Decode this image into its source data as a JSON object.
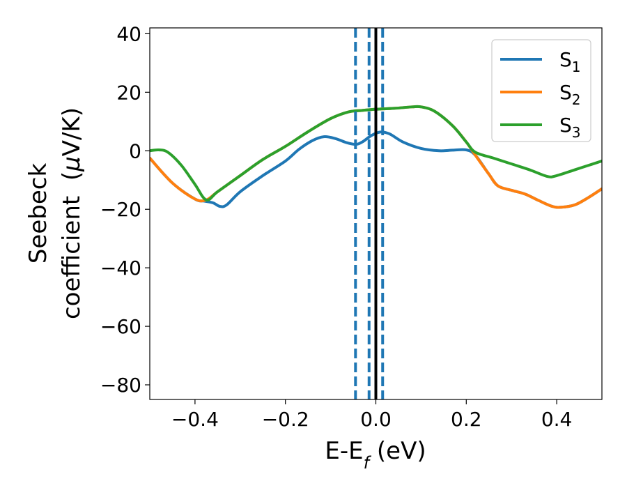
{
  "chart_data": {
    "type": "line",
    "title": "",
    "xlabel": {
      "base": "E-E",
      "sub": "f",
      "rest": " (eV)"
    },
    "ylabel": {
      "line1": "Seebeck",
      "line2_prefix": "coefficient  (",
      "line2_mu": "μ",
      "line2_rest": "V/K)"
    },
    "xlim": [
      -0.5,
      0.5
    ],
    "ylim": [
      -85,
      42
    ],
    "xticks": [
      -0.4,
      -0.2,
      0.0,
      0.2,
      0.4
    ],
    "xtick_labels": [
      "−0.4",
      "−0.2",
      "0.0",
      "0.2",
      "0.4"
    ],
    "yticks": [
      40,
      20,
      0,
      -20,
      -40,
      -60,
      -80
    ],
    "ytick_labels": [
      "40",
      "20",
      "0",
      "−20",
      "−40",
      "−60",
      "−80"
    ],
    "grid": false,
    "legend_position": "top-right",
    "series": [
      {
        "name": "S",
        "sub": "1",
        "color": "#1f77b4",
        "points": [
          [
            -0.5,
            -2.5
          ],
          [
            -0.45,
            -11
          ],
          [
            -0.4,
            -16.5
          ],
          [
            -0.38,
            -17.2
          ],
          [
            -0.36,
            -17.8
          ],
          [
            -0.345,
            -19
          ],
          [
            -0.33,
            -18.5
          ],
          [
            -0.3,
            -14
          ],
          [
            -0.25,
            -8.5
          ],
          [
            -0.2,
            -3.5
          ],
          [
            -0.17,
            0.5
          ],
          [
            -0.14,
            3.5
          ],
          [
            -0.115,
            4.8
          ],
          [
            -0.09,
            4.2
          ],
          [
            -0.065,
            2.8
          ],
          [
            -0.045,
            2.2
          ],
          [
            -0.03,
            3
          ],
          [
            -0.01,
            5.2
          ],
          [
            0.01,
            6.4
          ],
          [
            0.03,
            5.8
          ],
          [
            0.06,
            3
          ],
          [
            0.1,
            0.8
          ],
          [
            0.14,
            0
          ],
          [
            0.17,
            0.2
          ],
          [
            0.2,
            0.3
          ],
          [
            0.22,
            -1.5
          ],
          [
            0.25,
            -8
          ],
          [
            0.27,
            -12
          ],
          [
            0.3,
            -13.5
          ],
          [
            0.33,
            -14.8
          ],
          [
            0.36,
            -17
          ],
          [
            0.39,
            -19
          ],
          [
            0.41,
            -19.3
          ],
          [
            0.44,
            -18.5
          ],
          [
            0.47,
            -16
          ],
          [
            0.5,
            -13
          ]
        ]
      },
      {
        "name": "S",
        "sub": "2",
        "color": "#ff7f0e",
        "points": [
          [
            -0.5,
            -2.5
          ],
          [
            -0.45,
            -11
          ],
          [
            -0.4,
            -16.5
          ],
          [
            -0.375,
            -16.8
          ],
          [
            -0.35,
            -14
          ],
          [
            -0.3,
            -8.5
          ],
          [
            -0.25,
            -3
          ],
          [
            -0.2,
            1.5
          ],
          [
            -0.15,
            6.5
          ],
          [
            -0.1,
            11
          ],
          [
            -0.06,
            13.3
          ],
          [
            -0.03,
            13.8
          ],
          [
            0.0,
            14.2
          ],
          [
            0.04,
            14.5
          ],
          [
            0.08,
            15
          ],
          [
            0.1,
            15
          ],
          [
            0.13,
            13.5
          ],
          [
            0.17,
            8.5
          ],
          [
            0.2,
            3
          ],
          [
            0.22,
            -1.5
          ],
          [
            0.25,
            -8
          ],
          [
            0.27,
            -12
          ],
          [
            0.3,
            -13.5
          ],
          [
            0.33,
            -14.8
          ],
          [
            0.36,
            -17
          ],
          [
            0.39,
            -19
          ],
          [
            0.41,
            -19.3
          ],
          [
            0.44,
            -18.5
          ],
          [
            0.47,
            -16
          ],
          [
            0.5,
            -13
          ]
        ]
      },
      {
        "name": "S",
        "sub": "3",
        "color": "#2ca02c",
        "points": [
          [
            -0.5,
            0
          ],
          [
            -0.48,
            0.3
          ],
          [
            -0.46,
            -0.5
          ],
          [
            -0.43,
            -5
          ],
          [
            -0.4,
            -11.5
          ],
          [
            -0.375,
            -16.8
          ],
          [
            -0.35,
            -14
          ],
          [
            -0.3,
            -8.5
          ],
          [
            -0.25,
            -3
          ],
          [
            -0.2,
            1.5
          ],
          [
            -0.15,
            6.5
          ],
          [
            -0.1,
            11
          ],
          [
            -0.06,
            13.3
          ],
          [
            -0.03,
            13.8
          ],
          [
            0.0,
            14.2
          ],
          [
            0.04,
            14.5
          ],
          [
            0.08,
            15
          ],
          [
            0.1,
            15
          ],
          [
            0.13,
            13.5
          ],
          [
            0.17,
            8.5
          ],
          [
            0.2,
            3
          ],
          [
            0.22,
            -0.5
          ],
          [
            0.26,
            -2.5
          ],
          [
            0.3,
            -4.5
          ],
          [
            0.34,
            -6.5
          ],
          [
            0.38,
            -8.8
          ],
          [
            0.4,
            -8.5
          ],
          [
            0.44,
            -6.5
          ],
          [
            0.47,
            -5
          ],
          [
            0.5,
            -3.5
          ]
        ]
      }
    ],
    "vlines": [
      {
        "x": -0.045,
        "style": "dashed",
        "color": "#1f77b4"
      },
      {
        "x": -0.015,
        "style": "dashed",
        "color": "#1f77b4"
      },
      {
        "x": 0.015,
        "style": "dashed",
        "color": "#1f77b4"
      },
      {
        "x": 0.0,
        "style": "solid",
        "color": "#000000"
      }
    ]
  }
}
